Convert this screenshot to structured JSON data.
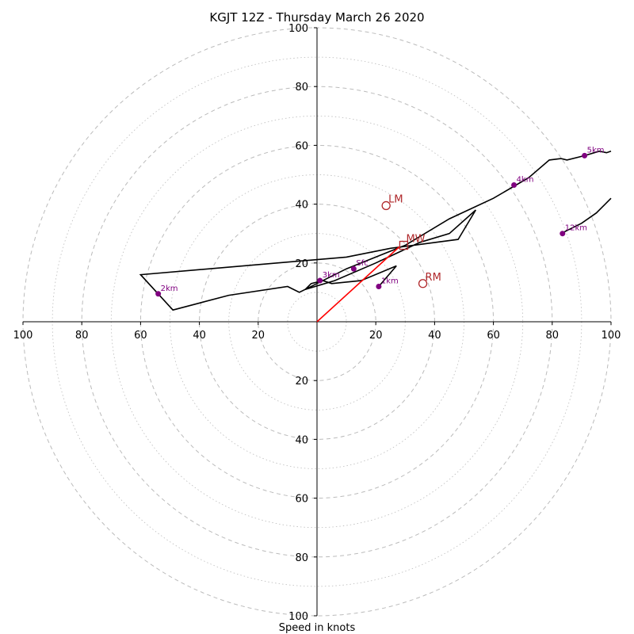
{
  "chart_data": {
    "type": "line",
    "title": "KGJT 12Z - Thursday March 26 2020",
    "xlabel": "Speed in knots",
    "ylabel": "",
    "xlim": [
      -100,
      100
    ],
    "ylim": [
      -100,
      100
    ],
    "grid": "polar rings: dashed every 20 kt, dotted every 10 kt",
    "tick_values": [
      100,
      80,
      60,
      40,
      20
    ],
    "colors": {
      "hodograph": "#000000",
      "storm_vector": "#ff0000",
      "markers": "#b0282b",
      "heights": "#800080",
      "grid": "#bbbbbb"
    },
    "hodograph": [
      [
        21,
        12
      ],
      [
        27,
        19
      ],
      [
        15,
        14
      ],
      [
        5,
        13
      ],
      [
        2,
        14
      ],
      [
        -2,
        13
      ],
      [
        -4,
        11
      ],
      [
        6,
        14
      ],
      [
        20,
        20
      ],
      [
        35,
        27
      ],
      [
        45,
        30
      ],
      [
        54,
        38
      ],
      [
        48,
        28
      ],
      [
        25,
        25
      ],
      [
        10,
        22
      ],
      [
        -60,
        16
      ],
      [
        -49,
        4
      ],
      [
        -30,
        9
      ],
      [
        -10,
        12
      ],
      [
        -6,
        10
      ],
      [
        10,
        18
      ],
      [
        30,
        26
      ],
      [
        45,
        35
      ],
      [
        60,
        42
      ],
      [
        72,
        49
      ],
      [
        79,
        55
      ],
      [
        83,
        55.5
      ],
      [
        85,
        55
      ],
      [
        91,
        56.5
      ],
      [
        96,
        58
      ],
      [
        98.5,
        57.5
      ],
      [
        100,
        58
      ]
    ],
    "hodograph_upper": [
      [
        83,
        30
      ],
      [
        90,
        33.5
      ],
      [
        95,
        37
      ],
      [
        97,
        39
      ],
      [
        100,
        42
      ]
    ],
    "height_points": [
      {
        "label": "1km",
        "x": 21,
        "y": 12
      },
      {
        "label": "Sfc",
        "x": 12.5,
        "y": 18
      },
      {
        "label": "3km",
        "x": 1,
        "y": 14
      },
      {
        "label": "2km",
        "x": -54,
        "y": 9.5
      },
      {
        "label": "4km",
        "x": 67,
        "y": 46.5
      },
      {
        "label": "5km",
        "x": 91,
        "y": 56.5
      },
      {
        "label": "12km",
        "x": 83.5,
        "y": 30
      }
    ],
    "storm_motion": [
      {
        "label": "LM",
        "x": 23.5,
        "y": 39.5,
        "shape": "circle"
      },
      {
        "label": "MW",
        "x": 29.5,
        "y": 26,
        "shape": "square"
      },
      {
        "label": "RM",
        "x": 36,
        "y": 13,
        "shape": "circle"
      }
    ],
    "storm_vector": {
      "from": [
        0,
        0
      ],
      "to": [
        28,
        25.5
      ]
    }
  }
}
